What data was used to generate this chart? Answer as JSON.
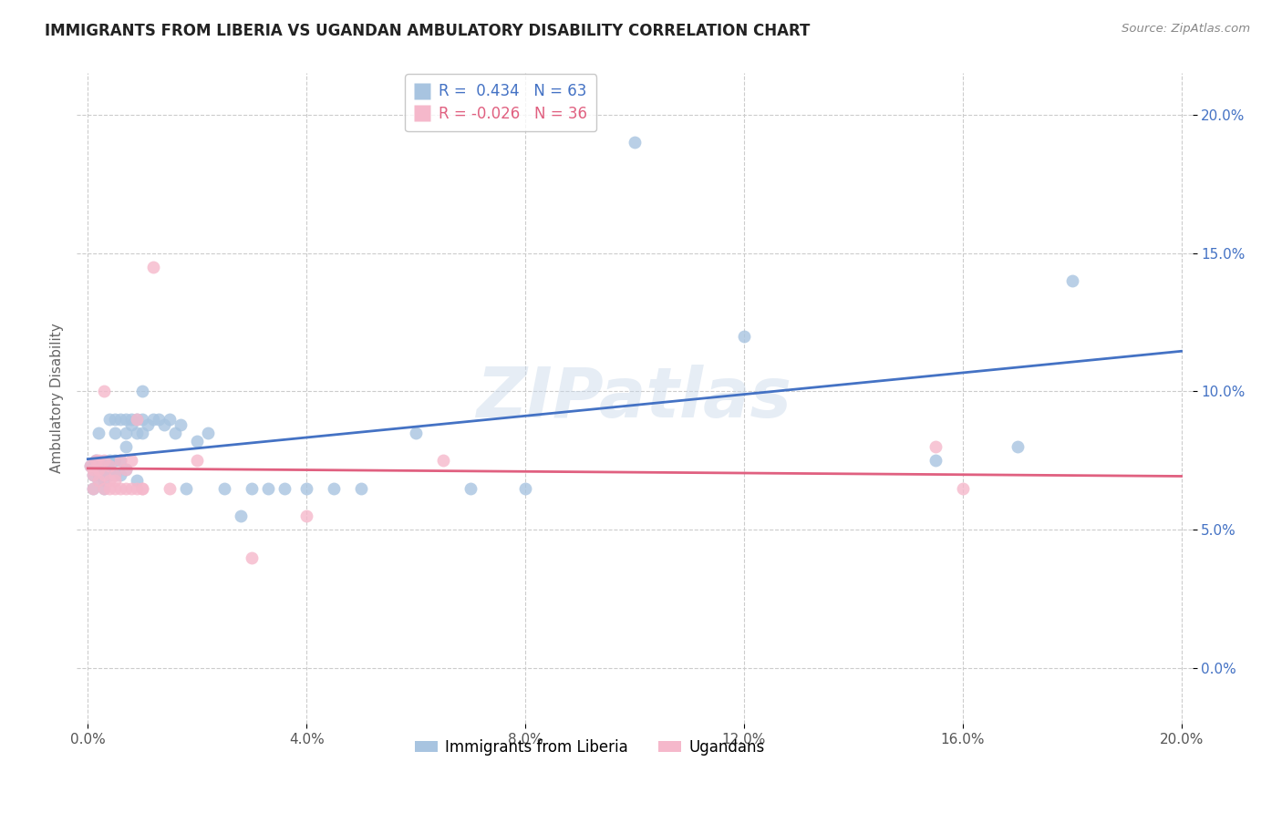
{
  "title": "IMMIGRANTS FROM LIBERIA VS UGANDAN AMBULATORY DISABILITY CORRELATION CHART",
  "source": "Source: ZipAtlas.com",
  "ylabel": "Ambulatory Disability",
  "watermark": "ZIPatlas",
  "xlim": [
    -0.002,
    0.202
  ],
  "ylim": [
    -0.02,
    0.215
  ],
  "xticks": [
    0.0,
    0.04,
    0.08,
    0.12,
    0.16,
    0.2
  ],
  "yticks": [
    0.0,
    0.05,
    0.1,
    0.15,
    0.2
  ],
  "ytick_labels": [
    "0.0%",
    "5.0%",
    "10.0%",
    "15.0%",
    "20.0%"
  ],
  "xtick_labels": [
    "0.0%",
    "4.0%",
    "8.0%",
    "12.0%",
    "16.0%",
    "20.0%"
  ],
  "blue_R": 0.434,
  "blue_N": 63,
  "pink_R": -0.026,
  "pink_N": 36,
  "blue_color": "#a8c4e0",
  "pink_color": "#f5b8cb",
  "blue_line_color": "#4472c4",
  "pink_line_color": "#e06080",
  "legend_label_blue": "Immigrants from Liberia",
  "legend_label_pink": "Ugandans",
  "blue_x": [
    0.0005,
    0.001,
    0.001,
    0.001,
    0.0015,
    0.002,
    0.002,
    0.002,
    0.002,
    0.003,
    0.003,
    0.003,
    0.003,
    0.003,
    0.004,
    0.004,
    0.004,
    0.004,
    0.005,
    0.005,
    0.005,
    0.005,
    0.006,
    0.006,
    0.006,
    0.007,
    0.007,
    0.007,
    0.007,
    0.008,
    0.008,
    0.009,
    0.009,
    0.009,
    0.01,
    0.01,
    0.01,
    0.011,
    0.012,
    0.013,
    0.014,
    0.015,
    0.016,
    0.017,
    0.018,
    0.02,
    0.022,
    0.025,
    0.028,
    0.03,
    0.033,
    0.036,
    0.04,
    0.045,
    0.05,
    0.06,
    0.07,
    0.08,
    0.1,
    0.12,
    0.155,
    0.17,
    0.18
  ],
  "blue_y": [
    0.073,
    0.073,
    0.07,
    0.065,
    0.075,
    0.073,
    0.07,
    0.068,
    0.085,
    0.07,
    0.072,
    0.068,
    0.065,
    0.073,
    0.07,
    0.072,
    0.075,
    0.09,
    0.07,
    0.075,
    0.085,
    0.09,
    0.07,
    0.075,
    0.09,
    0.072,
    0.08,
    0.085,
    0.09,
    0.09,
    0.088,
    0.068,
    0.085,
    0.09,
    0.085,
    0.09,
    0.1,
    0.088,
    0.09,
    0.09,
    0.088,
    0.09,
    0.085,
    0.088,
    0.065,
    0.082,
    0.085,
    0.065,
    0.055,
    0.065,
    0.065,
    0.065,
    0.065,
    0.065,
    0.065,
    0.085,
    0.065,
    0.065,
    0.19,
    0.12,
    0.075,
    0.08,
    0.14
  ],
  "pink_x": [
    0.0005,
    0.001,
    0.001,
    0.001,
    0.0015,
    0.002,
    0.002,
    0.002,
    0.003,
    0.003,
    0.003,
    0.003,
    0.004,
    0.004,
    0.004,
    0.005,
    0.005,
    0.005,
    0.006,
    0.006,
    0.007,
    0.007,
    0.008,
    0.008,
    0.009,
    0.009,
    0.01,
    0.01,
    0.012,
    0.015,
    0.02,
    0.03,
    0.04,
    0.065,
    0.155,
    0.16
  ],
  "pink_y": [
    0.073,
    0.072,
    0.07,
    0.065,
    0.075,
    0.068,
    0.072,
    0.075,
    0.065,
    0.07,
    0.075,
    0.1,
    0.068,
    0.065,
    0.073,
    0.065,
    0.07,
    0.068,
    0.065,
    0.075,
    0.065,
    0.072,
    0.075,
    0.065,
    0.065,
    0.09,
    0.065,
    0.065,
    0.145,
    0.065,
    0.075,
    0.04,
    0.055,
    0.075,
    0.08,
    0.065
  ],
  "background_color": "#ffffff",
  "grid_color": "#cccccc"
}
